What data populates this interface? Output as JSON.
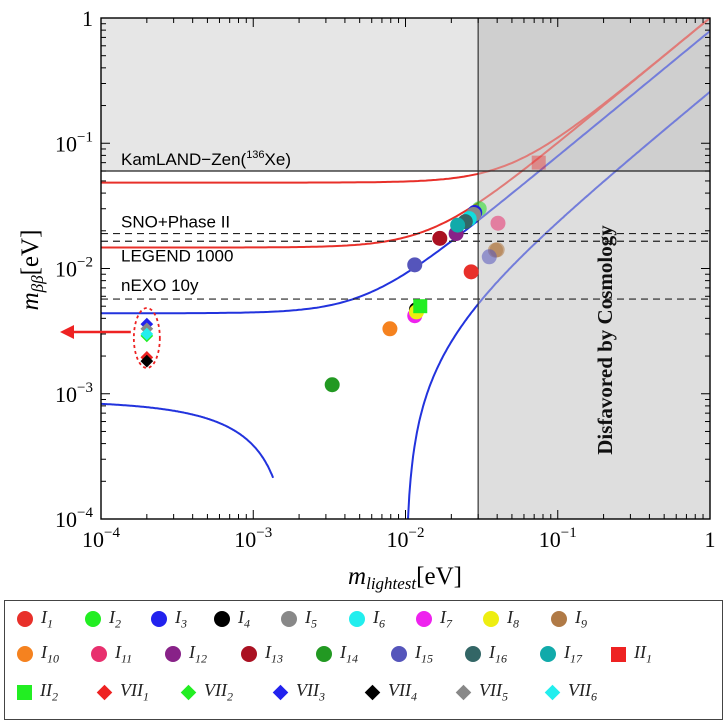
{
  "chart_data": {
    "type": "scatter",
    "xscale": "log",
    "yscale": "log",
    "xlim": [
      0.0001,
      1
    ],
    "ylim": [
      0.0001,
      1
    ],
    "xlabel": "m_lightest[eV]",
    "ylabel": "m_ββ[eV]",
    "x_ticks": [
      {
        "v": 0.0001,
        "base": "10",
        "exp": "−4"
      },
      {
        "v": 0.001,
        "base": "10",
        "exp": "−3"
      },
      {
        "v": 0.01,
        "base": "10",
        "exp": "−2"
      },
      {
        "v": 0.1,
        "base": "10",
        "exp": "−1"
      },
      {
        "v": 1,
        "base": "1",
        "exp": ""
      }
    ],
    "y_ticks": [
      {
        "v": 0.0001,
        "base": "10",
        "exp": "−4"
      },
      {
        "v": 0.001,
        "base": "10",
        "exp": "−3"
      },
      {
        "v": 0.01,
        "base": "10",
        "exp": "−2"
      },
      {
        "v": 0.1,
        "base": "10",
        "exp": "−1"
      },
      {
        "v": 1,
        "base": "1",
        "exp": ""
      }
    ],
    "limits": [
      {
        "name": "KamLAND−Zen(",
        "sup": "136",
        "suffix": "Xe)",
        "y": 0.06,
        "style": "solid"
      },
      {
        "name": "SNO+Phase II",
        "y": 0.019,
        "style": "dashed"
      },
      {
        "name": "LEGEND 1000",
        "y": 0.0165,
        "style": "dashed"
      },
      {
        "name": "nEXO 10y",
        "y": 0.0057,
        "style": "dashed"
      }
    ],
    "cosmology": {
      "x_min": 0.03,
      "label": "Disfavored by Cosmology"
    },
    "regions": {
      "IO_band": {
        "m_low": 0.0147,
        "m_high": 0.0485,
        "color": "#e8302a"
      },
      "NO_band": {
        "upper_asymptote": 0.0043,
        "lower_cross_x": 0.0011,
        "color": "#2233dd"
      }
    },
    "arrow_at": {
      "x": 0.0002,
      "y": 0.003
    },
    "series": [
      {
        "name": "I_1",
        "color": "#e8302a",
        "marker": "circle",
        "points": [
          [
            0.027,
            0.0094
          ]
        ]
      },
      {
        "name": "I_2",
        "color": "#22dd22",
        "marker": "circle",
        "points": [
          [
            0.0305,
            0.03
          ]
        ]
      },
      {
        "name": "I_3",
        "color": "#2222dd",
        "marker": "circle",
        "points": [
          [
            0.0285,
            0.028
          ]
        ]
      },
      {
        "name": "I_4",
        "color": "#000000",
        "marker": "circle",
        "points": [
          [
            0.0118,
            0.0047
          ]
        ]
      },
      {
        "name": "I_5",
        "color": "#888888",
        "marker": "circle",
        "points": [
          [
            0.028,
            0.027
          ]
        ]
      },
      {
        "name": "I_6",
        "color": "#11dddd",
        "marker": "circle",
        "points": [
          [
            0.0262,
            0.025
          ]
        ]
      },
      {
        "name": "I_7",
        "color": "#ee22ee",
        "marker": "circle",
        "points": [
          [
            0.0115,
            0.0042
          ]
        ]
      },
      {
        "name": "I_8",
        "color": "#eeee11",
        "marker": "circle",
        "points": [
          [
            0.0118,
            0.0045
          ]
        ]
      },
      {
        "name": "I_9",
        "color": "#b07a46",
        "marker": "circle",
        "points": [
          [
            0.04,
            0.0141
          ],
          [
            0.039,
            0.014
          ]
        ]
      },
      {
        "name": "I_10",
        "color": "#f5821f",
        "marker": "circle",
        "points": [
          [
            0.0079,
            0.0033
          ]
        ]
      },
      {
        "name": "I_11",
        "color": "#e8306e",
        "marker": "circle",
        "points": [
          [
            0.0405,
            0.023
          ]
        ]
      },
      {
        "name": "I_12",
        "color": "#882288",
        "marker": "circle",
        "points": [
          [
            0.0215,
            0.019
          ]
        ]
      },
      {
        "name": "I_13",
        "color": "#aa1122",
        "marker": "circle",
        "points": [
          [
            0.0168,
            0.0174
          ]
        ]
      },
      {
        "name": "I_14",
        "color": "#229922",
        "marker": "circle",
        "points": [
          [
            0.0033,
            0.00118
          ]
        ]
      },
      {
        "name": "I_15",
        "color": "#5555bb",
        "marker": "circle",
        "points": [
          [
            0.0115,
            0.0107
          ],
          [
            0.0355,
            0.0124
          ]
        ]
      },
      {
        "name": "I_16",
        "color": "#336666",
        "marker": "circle",
        "points": [
          [
            0.0247,
            0.0237
          ]
        ]
      },
      {
        "name": "I_17",
        "color": "#11aaaa",
        "marker": "circle",
        "points": [
          [
            0.022,
            0.0222
          ]
        ]
      },
      {
        "name": "II_1",
        "color": "#ee2222",
        "marker": "square",
        "points": [
          [
            0.075,
            0.07
          ]
        ]
      },
      {
        "name": "II_2",
        "color": "#22ee22",
        "marker": "square",
        "points": [
          [
            0.0125,
            0.005
          ]
        ]
      },
      {
        "name": "VII_1",
        "color": "#ee2222",
        "marker": "diamond",
        "points": [
          [
            0.0002,
            0.00195
          ]
        ]
      },
      {
        "name": "VII_2",
        "color": "#22ee22",
        "marker": "diamond",
        "points": [
          [
            0.0002,
            0.0029
          ]
        ]
      },
      {
        "name": "VII_3",
        "color": "#2222ee",
        "marker": "diamond",
        "points": [
          [
            0.0002,
            0.0036
          ]
        ]
      },
      {
        "name": "VII_4",
        "color": "#000000",
        "marker": "diamond",
        "points": [
          [
            0.0002,
            0.00182
          ]
        ]
      },
      {
        "name": "VII_5",
        "color": "#888888",
        "marker": "diamond",
        "points": [
          [
            0.0002,
            0.0033
          ]
        ]
      },
      {
        "name": "VII_6",
        "color": "#22eeee",
        "marker": "diamond",
        "points": [
          [
            0.0002,
            0.003
          ]
        ]
      }
    ]
  },
  "legend": [
    {
      "script": "I",
      "sub": "1",
      "color": "#e8302a",
      "marker": "circle"
    },
    {
      "script": "I",
      "sub": "2",
      "color": "#22ee22",
      "marker": "circle"
    },
    {
      "script": "I",
      "sub": "3",
      "color": "#2222ee",
      "marker": "circle"
    },
    {
      "script": "I",
      "sub": "4",
      "color": "#000000",
      "marker": "circle"
    },
    {
      "script": "I",
      "sub": "5",
      "color": "#888888",
      "marker": "circle"
    },
    {
      "script": "I",
      "sub": "6",
      "color": "#22eeee",
      "marker": "circle"
    },
    {
      "script": "I",
      "sub": "7",
      "color": "#ee22ee",
      "marker": "circle"
    },
    {
      "script": "I",
      "sub": "8",
      "color": "#eeee11",
      "marker": "circle"
    },
    {
      "script": "I",
      "sub": "9",
      "color": "#b07a46",
      "marker": "circle"
    },
    {
      "script": "I",
      "sub": "10",
      "color": "#f5821f",
      "marker": "circle"
    },
    {
      "script": "I",
      "sub": "11",
      "color": "#e8306e",
      "marker": "circle"
    },
    {
      "script": "I",
      "sub": "12",
      "color": "#882288",
      "marker": "circle"
    },
    {
      "script": "I",
      "sub": "13",
      "color": "#aa1122",
      "marker": "circle"
    },
    {
      "script": "I",
      "sub": "14",
      "color": "#229922",
      "marker": "circle"
    },
    {
      "script": "I",
      "sub": "15",
      "color": "#5555bb",
      "marker": "circle"
    },
    {
      "script": "I",
      "sub": "16",
      "color": "#336666",
      "marker": "circle"
    },
    {
      "script": "I",
      "sub": "17",
      "color": "#11aaaa",
      "marker": "circle"
    },
    {
      "script": "II",
      "sub": "1",
      "color": "#ee2222",
      "marker": "square"
    },
    {
      "script": "II",
      "sub": "2",
      "color": "#22ee22",
      "marker": "square"
    },
    {
      "script": "VII",
      "sub": "1",
      "color": "#ee2222",
      "marker": "diamond"
    },
    {
      "script": "VII",
      "sub": "2",
      "color": "#22ee22",
      "marker": "diamond"
    },
    {
      "script": "VII",
      "sub": "3",
      "color": "#2222ee",
      "marker": "diamond"
    },
    {
      "script": "VII",
      "sub": "4",
      "color": "#000000",
      "marker": "diamond"
    },
    {
      "script": "VII",
      "sub": "5",
      "color": "#888888",
      "marker": "diamond"
    },
    {
      "script": "VII",
      "sub": "6",
      "color": "#22eeee",
      "marker": "diamond"
    }
  ]
}
